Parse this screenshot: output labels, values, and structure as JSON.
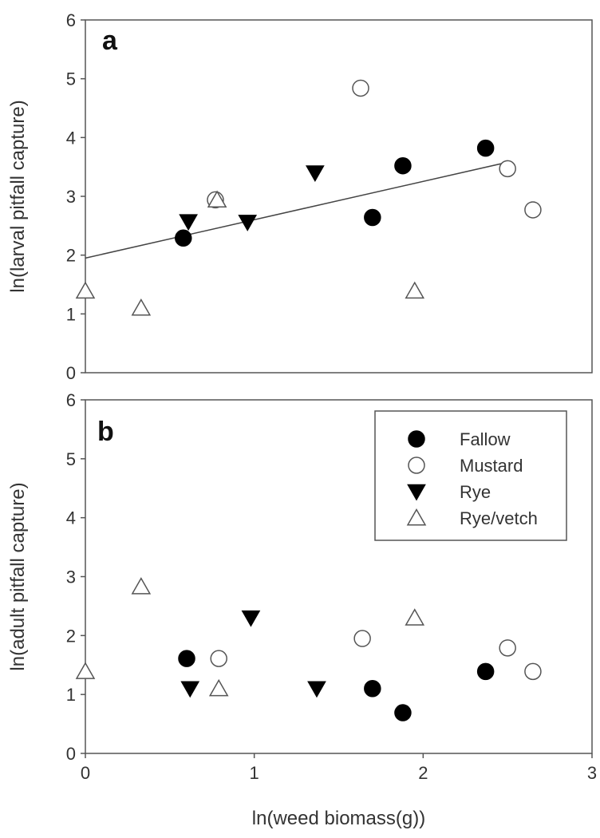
{
  "chart_data": [
    {
      "panel": "a",
      "type": "scatter",
      "title": "",
      "xlabel": "",
      "ylabel": "ln(larval pitfall capture)",
      "xlim": [
        0,
        3
      ],
      "ylim": [
        0,
        6
      ],
      "xticks": [],
      "yticks": [
        "0",
        "1",
        "2",
        "3",
        "4",
        "5",
        "6"
      ],
      "series": [
        {
          "name": "Fallow",
          "marker": "filled-circle",
          "points": [
            [
              0.58,
              2.29
            ],
            [
              1.7,
              2.64
            ],
            [
              1.88,
              3.52
            ],
            [
              2.37,
              3.82
            ]
          ]
        },
        {
          "name": "Mustard",
          "marker": "open-circle",
          "points": [
            [
              0.77,
              2.94
            ],
            [
              1.63,
              4.84
            ],
            [
              2.5,
              3.47
            ],
            [
              2.65,
              2.77
            ]
          ]
        },
        {
          "name": "Rye",
          "marker": "filled-triangle-down",
          "points": [
            [
              0.61,
              2.57
            ],
            [
              0.96,
              2.56
            ],
            [
              1.36,
              3.4
            ]
          ]
        },
        {
          "name": "Rye/vetch",
          "marker": "open-triangle-up",
          "points": [
            [
              0.0,
              1.39
            ],
            [
              0.33,
              1.1
            ],
            [
              0.78,
              2.94
            ],
            [
              1.95,
              1.39
            ]
          ]
        }
      ],
      "fit_line": {
        "x": [
          0,
          2.5
        ],
        "y": [
          1.95,
          3.58
        ]
      }
    },
    {
      "panel": "b",
      "type": "scatter",
      "title": "",
      "xlabel": "ln(weed biomass(g))",
      "ylabel": "ln(adult pitfall capture)",
      "xlim": [
        0,
        3
      ],
      "ylim": [
        0,
        6
      ],
      "xticks": [
        "0",
        "1",
        "2",
        "3"
      ],
      "yticks": [
        "0",
        "1",
        "2",
        "3",
        "4",
        "5",
        "6"
      ],
      "legend_position": "top-right",
      "series": [
        {
          "name": "Fallow",
          "marker": "filled-circle",
          "points": [
            [
              0.6,
              1.61
            ],
            [
              1.7,
              1.1
            ],
            [
              1.88,
              0.69
            ],
            [
              2.37,
              1.39
            ]
          ]
        },
        {
          "name": "Mustard",
          "marker": "open-circle",
          "points": [
            [
              0.79,
              1.61
            ],
            [
              1.64,
              1.95
            ],
            [
              2.5,
              1.79
            ],
            [
              2.65,
              1.39
            ]
          ]
        },
        {
          "name": "Rye",
          "marker": "filled-triangle-down",
          "points": [
            [
              0.62,
              1.1
            ],
            [
              0.98,
              2.3
            ],
            [
              1.37,
              1.1
            ]
          ]
        },
        {
          "name": "Rye/vetch",
          "marker": "open-triangle-up",
          "points": [
            [
              0.0,
              1.39
            ],
            [
              0.33,
              2.83
            ],
            [
              0.79,
              1.1
            ],
            [
              1.95,
              2.3
            ]
          ]
        }
      ]
    }
  ]
}
